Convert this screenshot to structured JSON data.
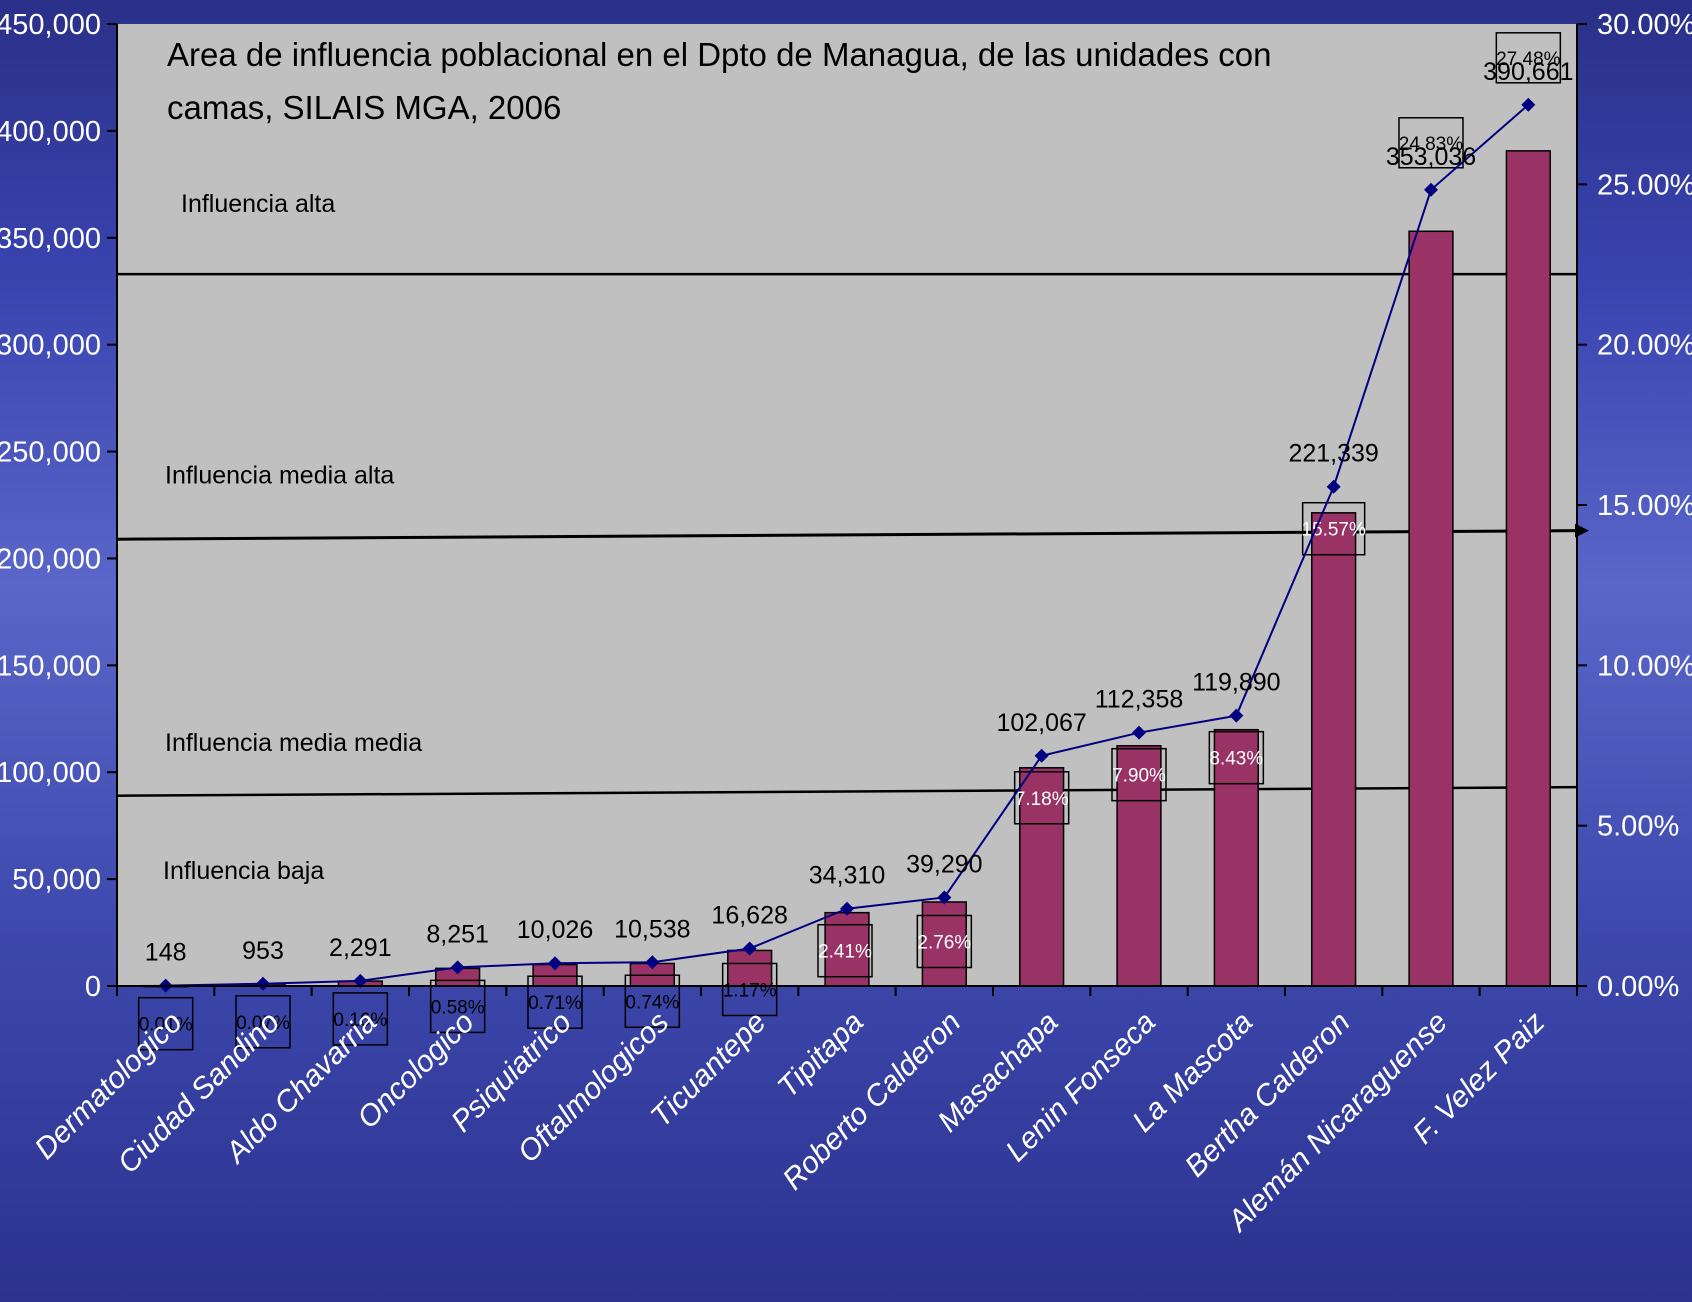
{
  "chart_data": {
    "type": "bar",
    "title": "Area de influencia poblacional en el Dpto de Managua, de las unidades con camas, SILAIS MGA, 2006",
    "title_lines": [
      "Area de influencia poblacional en el Dpto de Managua, de las unidades con",
      "camas, SILAIS MGA, 2006"
    ],
    "categories": [
      "Dermatologico",
      "Ciudad Sandino",
      "Aldo Chavarria",
      "Oncologico",
      "Psiquiatrico",
      "Oftalmologicos",
      "Ticuantepe",
      "Tipitapa",
      "Roberto Calderon",
      "Masachapa",
      "Lenin Fonseca",
      "La Mascota",
      "Bertha Calderon",
      "Alemán Nicaraguense",
      "F. Velez Paiz"
    ],
    "series": [
      {
        "values": [
          148,
          953,
          2291,
          8251,
          10026,
          10538,
          16628,
          34310,
          39290,
          102067,
          112358,
          119890,
          221339,
          353036,
          390661
        ]
      },
      {
        "values": [
          0.01,
          0.07,
          0.16,
          0.58,
          0.71,
          0.74,
          1.17,
          2.41,
          2.76,
          7.18,
          7.9,
          8.43,
          15.57,
          24.83,
          27.48
        ]
      }
    ],
    "value_labels": [
      "148",
      "953",
      "2,291",
      "8,251",
      "10,026",
      "10,538",
      "16,628",
      "34,310",
      "39,290",
      "102,067",
      "112,358",
      "119,890",
      "221,339",
      "353,036",
      "390,661"
    ],
    "pct_labels": [
      "0.01%",
      "0.07%",
      "0.16%",
      "0.58%",
      "0.71%",
      "0.74%",
      "1.17%",
      "2.41%",
      "2.76%",
      "7.18%",
      "7.90%",
      "8.43%",
      "15.57%",
      "24.83%",
      "27.48%"
    ],
    "ylim": [
      0,
      450000
    ],
    "y_ticks": [
      0,
      50000,
      100000,
      150000,
      200000,
      250000,
      300000,
      350000,
      400000,
      450000
    ],
    "y_tick_labels": [
      "0",
      "50,000",
      "100,000",
      "150,000",
      "200,000",
      "250,000",
      "300,000",
      "350,000",
      "400,000",
      "450,000"
    ],
    "y2lim": [
      0,
      30
    ],
    "y2_ticks": [
      0,
      5,
      10,
      15,
      20,
      25,
      30
    ],
    "y2_tick_labels": [
      "0.00%",
      "5.00%",
      "10.00%",
      "15.00%",
      "20.00%",
      "25.00%",
      "30.00%"
    ],
    "zones": [
      {
        "label": "Influencia alta",
        "y_start": 333000,
        "y_end": 333000,
        "arrow": false
      },
      {
        "label": "Influencia media alta",
        "y_start": 209000,
        "y_end": 213000,
        "arrow": true
      },
      {
        "label": "Influencia media media",
        "y_start": 89000,
        "y_end": 93000,
        "arrow": false
      },
      {
        "label": "Influencia baja",
        "y_start": null,
        "y_end": null,
        "arrow": false
      }
    ],
    "grid": false,
    "colors": {
      "bar": "#993366",
      "line": "#000080",
      "plot_bg": "#c0c0c0",
      "axis_text": "#ffffff",
      "pct_text_inside": "#ffffff",
      "pct_text_outside": "#000000"
    }
  }
}
